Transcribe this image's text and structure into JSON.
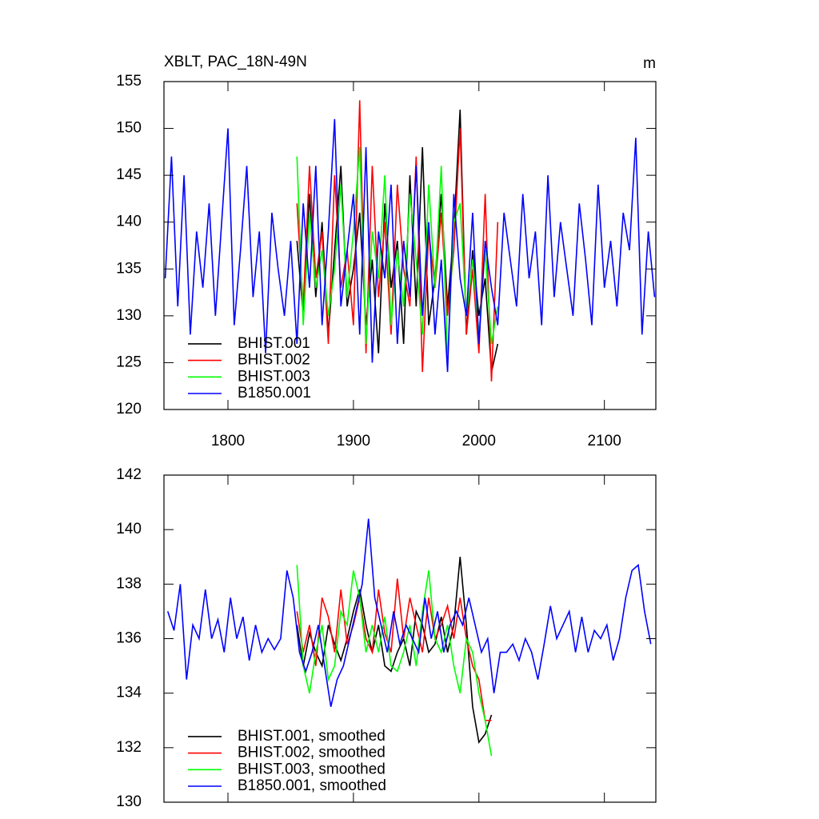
{
  "chart_data": [
    {
      "type": "line",
      "title": "XBLT, PAC_18N-49N",
      "units": "m",
      "xlim": [
        1749,
        2141
      ],
      "xticks": [
        1800,
        1900,
        2000,
        2100
      ],
      "xtick_labels": true,
      "ylim": [
        120,
        155
      ],
      "yticks": [
        120,
        125,
        130,
        135,
        140,
        145,
        150,
        155
      ],
      "legend": "lower-left",
      "series": [
        {
          "name": "BHIST.001",
          "color": "#000000",
          "x": [
            1855,
            1860,
            1865,
            1870,
            1875,
            1880,
            1885,
            1890,
            1895,
            1900,
            1905,
            1910,
            1915,
            1920,
            1925,
            1930,
            1935,
            1940,
            1945,
            1950,
            1955,
            1960,
            1965,
            1970,
            1975,
            1980,
            1985,
            1990,
            1995,
            2000,
            2005,
            2010,
            2015
          ],
          "values": [
            138,
            130,
            143,
            132,
            140,
            128,
            137,
            146,
            131,
            135,
            141,
            129,
            136,
            126,
            142,
            133,
            138,
            127,
            145,
            131,
            148,
            129,
            134,
            143,
            131,
            139,
            152,
            128,
            137,
            130,
            134,
            124,
            127
          ]
        },
        {
          "name": "BHIST.002",
          "color": "#ff0000",
          "x": [
            1855,
            1860,
            1865,
            1870,
            1875,
            1880,
            1885,
            1890,
            1895,
            1900,
            1905,
            1910,
            1915,
            1920,
            1925,
            1930,
            1935,
            1940,
            1945,
            1950,
            1955,
            1960,
            1965,
            1970,
            1975,
            1980,
            1985,
            1990,
            1995,
            2000,
            2005,
            2010,
            2015
          ],
          "values": [
            142,
            131,
            146,
            134,
            139,
            127,
            145,
            133,
            137,
            129,
            153,
            126,
            146,
            132,
            140,
            128,
            144,
            135,
            131,
            147,
            124,
            139,
            133,
            141,
            130,
            137,
            150,
            128,
            135,
            126,
            143,
            123,
            140
          ]
        },
        {
          "name": "BHIST.003",
          "color": "#00ff00",
          "x": [
            1855,
            1860,
            1865,
            1870,
            1875,
            1880,
            1885,
            1890,
            1895,
            1900,
            1905,
            1910,
            1915,
            1920,
            1925,
            1930,
            1935,
            1940,
            1945,
            1950,
            1955,
            1960,
            1965,
            1970,
            1975,
            1980,
            1985,
            1990,
            1995,
            2000,
            2005,
            2010,
            2015
          ],
          "values": [
            147,
            129,
            141,
            133,
            137,
            130,
            135,
            144,
            132,
            139,
            148,
            127,
            139,
            134,
            145,
            129,
            137,
            131,
            143,
            136,
            128,
            144,
            133,
            146,
            125,
            140,
            142,
            130,
            136,
            128,
            137,
            127,
            131
          ]
        },
        {
          "name": "B1850.001",
          "color": "#0000ff",
          "x": [
            1750,
            1755,
            1760,
            1765,
            1770,
            1775,
            1780,
            1785,
            1790,
            1795,
            1800,
            1805,
            1810,
            1815,
            1820,
            1825,
            1830,
            1835,
            1840,
            1845,
            1850,
            1855,
            1860,
            1865,
            1870,
            1875,
            1880,
            1885,
            1890,
            1895,
            1900,
            1905,
            1910,
            1915,
            1920,
            1925,
            1930,
            1935,
            1940,
            1945,
            1950,
            1955,
            1960,
            1965,
            1970,
            1975,
            1980,
            1985,
            1990,
            1995,
            2000,
            2005,
            2010,
            2015,
            2020,
            2025,
            2030,
            2035,
            2040,
            2045,
            2050,
            2055,
            2060,
            2065,
            2070,
            2075,
            2080,
            2085,
            2090,
            2095,
            2100,
            2105,
            2110,
            2115,
            2120,
            2125,
            2130,
            2135,
            2140
          ],
          "values": [
            134,
            147,
            131,
            145,
            128,
            139,
            133,
            142,
            130,
            140,
            150,
            129,
            137,
            146,
            132,
            139,
            126,
            141,
            135,
            130,
            138,
            127,
            142,
            133,
            146,
            129,
            139,
            151,
            131,
            137,
            143,
            128,
            148,
            125,
            139,
            134,
            144,
            127,
            138,
            132,
            146,
            130,
            140,
            128,
            136,
            124,
            143,
            134,
            130,
            141,
            127,
            138,
            133,
            129,
            141,
            136,
            131,
            143,
            134,
            139,
            129,
            145,
            132,
            140,
            135,
            130,
            142,
            136,
            129,
            144,
            133,
            138,
            131,
            141,
            137,
            149,
            128,
            139,
            132
          ]
        }
      ]
    },
    {
      "type": "line",
      "xlim": [
        1749,
        2141
      ],
      "xticks": [
        1800,
        1900,
        2000,
        2100
      ],
      "xtick_labels": false,
      "ylim": [
        130,
        142
      ],
      "yticks": [
        130,
        132,
        134,
        136,
        138,
        140,
        142
      ],
      "legend": "lower-left",
      "series": [
        {
          "name": "BHIST.001, smoothed",
          "color": "#000000",
          "x": [
            1855,
            1860,
            1865,
            1870,
            1875,
            1880,
            1885,
            1890,
            1895,
            1900,
            1905,
            1910,
            1915,
            1920,
            1925,
            1930,
            1935,
            1940,
            1945,
            1950,
            1955,
            1960,
            1965,
            1970,
            1975,
            1980,
            1985,
            1990,
            1995,
            2000,
            2005,
            2010
          ],
          "values": [
            136.5,
            135,
            136.2,
            135.5,
            135,
            136.5,
            135.8,
            135.2,
            136,
            137,
            137.8,
            136.5,
            135.5,
            136.5,
            135,
            134.8,
            135.5,
            136,
            135,
            137,
            136.5,
            135.5,
            135.8,
            136.8,
            135.5,
            136.5,
            139,
            136.5,
            133.5,
            132.2,
            132.5,
            133.2
          ]
        },
        {
          "name": "BHIST.002, smoothed",
          "color": "#ff0000",
          "x": [
            1855,
            1860,
            1865,
            1870,
            1875,
            1880,
            1885,
            1890,
            1895,
            1900,
            1905,
            1910,
            1915,
            1920,
            1925,
            1930,
            1935,
            1940,
            1945,
            1950,
            1955,
            1960,
            1965,
            1970,
            1975,
            1980,
            1985,
            1990,
            1995,
            2000,
            2005,
            2010
          ],
          "values": [
            137,
            135.5,
            136.5,
            135,
            137.5,
            136.8,
            135.5,
            137.8,
            135.8,
            136.5,
            137.5,
            136,
            135.5,
            137.8,
            136.2,
            135.5,
            138.2,
            136,
            137.5,
            136.5,
            135.5,
            137.5,
            136,
            136.5,
            137.2,
            136,
            137.5,
            136,
            135,
            134.5,
            133,
            133
          ]
        },
        {
          "name": "BHIST.003, smoothed",
          "color": "#00ff00",
          "x": [
            1855,
            1860,
            1865,
            1870,
            1875,
            1880,
            1885,
            1890,
            1895,
            1900,
            1905,
            1910,
            1915,
            1920,
            1925,
            1930,
            1935,
            1940,
            1945,
            1950,
            1955,
            1960,
            1965,
            1970,
            1975,
            1980,
            1985,
            1990,
            1995,
            2000,
            2005,
            2010
          ],
          "values": [
            138.7,
            135,
            134,
            135.5,
            136.5,
            134.5,
            135,
            137,
            136.5,
            138.5,
            137.5,
            135.5,
            136.5,
            135.5,
            136.8,
            135,
            134.8,
            135.5,
            136.5,
            135,
            137,
            138.5,
            136,
            135.5,
            136.5,
            135,
            134,
            136,
            135.5,
            134,
            133,
            131.7
          ]
        },
        {
          "name": "B1850.001, smoothed",
          "color": "#0000ff",
          "x": [
            1752,
            1757,
            1762,
            1767,
            1772,
            1777,
            1782,
            1787,
            1792,
            1797,
            1802,
            1807,
            1812,
            1817,
            1822,
            1827,
            1832,
            1837,
            1842,
            1847,
            1852,
            1857,
            1862,
            1867,
            1872,
            1877,
            1882,
            1887,
            1892,
            1897,
            1902,
            1907,
            1912,
            1917,
            1922,
            1927,
            1932,
            1937,
            1942,
            1947,
            1952,
            1957,
            1962,
            1967,
            1972,
            1977,
            1982,
            1987,
            1992,
            1997,
            2002,
            2007,
            2012,
            2017,
            2022,
            2027,
            2032,
            2037,
            2042,
            2047,
            2052,
            2057,
            2062,
            2067,
            2072,
            2077,
            2082,
            2087,
            2092,
            2097,
            2102,
            2107,
            2112,
            2117,
            2122,
            2127,
            2132,
            2137
          ],
          "values": [
            137,
            136.3,
            138,
            134.5,
            136.5,
            136,
            137.8,
            136,
            136.7,
            135.5,
            137.5,
            136,
            136.8,
            135.2,
            136.5,
            135.5,
            136,
            135.6,
            136,
            138.5,
            137.5,
            135.5,
            134.8,
            135.5,
            136.5,
            135,
            133.5,
            134.5,
            135,
            136,
            137,
            138,
            140.4,
            137.5,
            136.5,
            135.5,
            137,
            135.8,
            136.5,
            136,
            135.5,
            137.5,
            136,
            137,
            135.5,
            136.5,
            137,
            136.5,
            137.5,
            136.5,
            135.5,
            136,
            134,
            135.5,
            135.5,
            135.8,
            135.2,
            136,
            135.5,
            134.5,
            135.8,
            137.2,
            136,
            136.5,
            137,
            135.5,
            136.8,
            135.5,
            136.3,
            136,
            136.5,
            135.2,
            136,
            137.5,
            138.5,
            138.7,
            137,
            135.8
          ]
        }
      ]
    }
  ]
}
